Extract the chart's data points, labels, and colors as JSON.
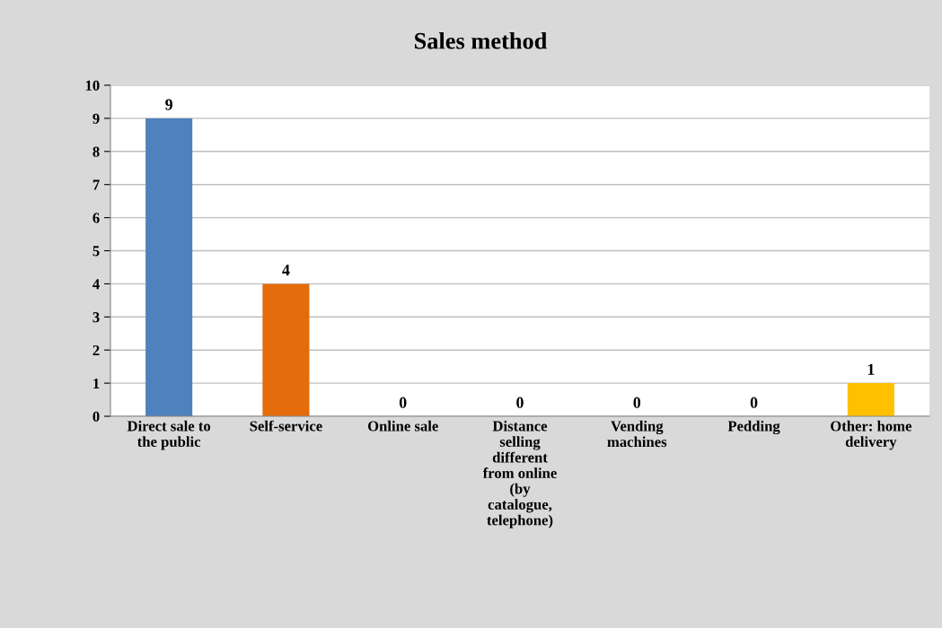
{
  "chart_data": {
    "type": "bar",
    "title": "Sales method",
    "categories": [
      "Direct sale to\nthe public",
      "Self-service",
      "Online sale",
      "Distance\nselling\ndifferent\nfrom online\n(by\ncatalogue,\ntelephone)",
      "Vending\nmachines",
      "Pedding",
      "Other: home\ndelivery"
    ],
    "values": [
      9,
      4,
      0,
      0,
      0,
      0,
      1
    ],
    "colors": [
      "#4f81bd",
      "#e46c0a",
      "#a5a5a5",
      "#8064a2",
      "#4bacc6",
      "#9bbb59",
      "#ffc000"
    ],
    "ylim": [
      0,
      10
    ],
    "yticks": [
      0,
      1,
      2,
      3,
      4,
      5,
      6,
      7,
      8,
      9,
      10
    ],
    "grid": "y",
    "data_labels": true,
    "legend": false
  }
}
